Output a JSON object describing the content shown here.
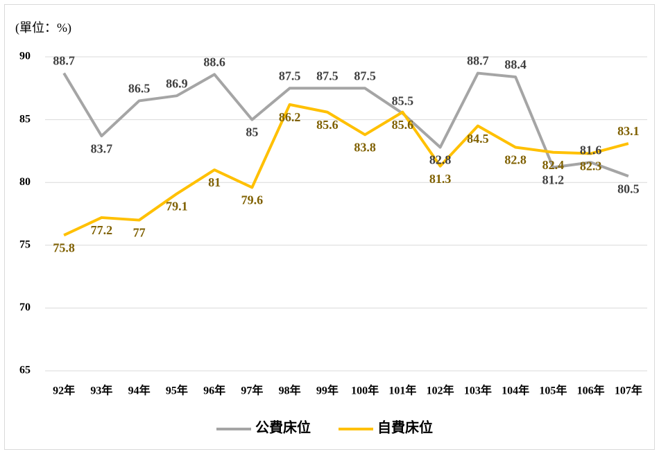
{
  "chart_data": {
    "type": "line",
    "unit_label": "(單位：%)",
    "categories": [
      "92年",
      "93年",
      "94年",
      "95年",
      "96年",
      "97年",
      "98年",
      "99年",
      "100年",
      "101年",
      "102年",
      "103年",
      "104年",
      "105年",
      "106年",
      "107年"
    ],
    "series": [
      {
        "name": "公費床位",
        "color": "#a5a5a5",
        "label_color": "#404040",
        "values": [
          88.7,
          83.7,
          86.5,
          86.9,
          88.6,
          85,
          87.5,
          87.5,
          87.5,
          85.5,
          82.8,
          88.7,
          88.4,
          81.2,
          81.6,
          80.5
        ]
      },
      {
        "name": "自費床位",
        "color": "#ffc000",
        "label_color": "#7f6000",
        "values": [
          75.8,
          77.2,
          77,
          79.1,
          81,
          79.6,
          86.2,
          85.6,
          83.8,
          85.6,
          81.3,
          84.5,
          82.8,
          82.4,
          82.3,
          83.1
        ]
      }
    ],
    "ylim": [
      65,
      90
    ],
    "yticks": [
      65,
      70,
      75,
      80,
      85,
      90
    ],
    "grid": true,
    "legend": "bottom"
  }
}
